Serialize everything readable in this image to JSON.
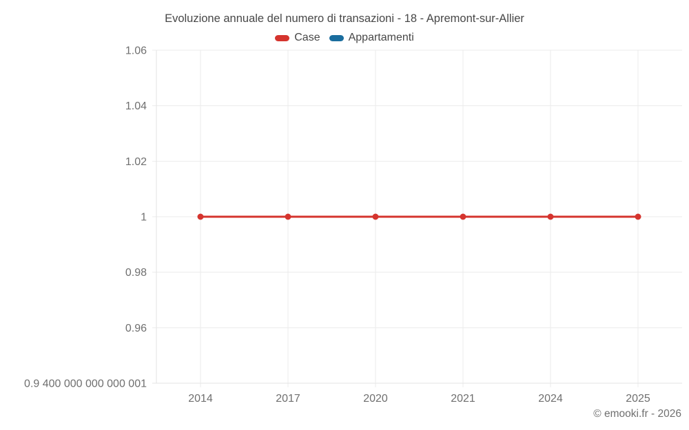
{
  "title": "Evoluzione annuale del numero di transazioni - 18 - Apremont-sur-Allier",
  "legend": [
    {
      "label": "Case",
      "color": "#d5342e"
    },
    {
      "label": "Appartamenti",
      "color": "#1a6d9e"
    }
  ],
  "copyright": "© emooki.fr - 2026",
  "colors": {
    "grid": "#ebebeb",
    "axis": "#e3e3e3",
    "tick_text": "#6f6f6f",
    "title_text": "#474747",
    "background": "#ffffff"
  },
  "chart_data": {
    "type": "line",
    "title": "Evoluzione annuale del numero di transazioni - 18 - Apremont-sur-Allier",
    "categories": [
      "2014",
      "2017",
      "2020",
      "2021",
      "2024",
      "2025"
    ],
    "series": [
      {
        "name": "Case",
        "color": "#d5342e",
        "values": [
          1,
          1,
          1,
          1,
          1,
          1
        ]
      },
      {
        "name": "Appartamenti",
        "color": "#1a6d9e",
        "values": []
      }
    ],
    "xlabel": "",
    "ylabel": "",
    "ylim": [
      0.9400000000000001,
      1.06
    ],
    "y_ticks": [
      1.06,
      1.04,
      1.02,
      1,
      0.98,
      0.96,
      0.9400000000000001
    ],
    "y_tick_labels": [
      "1.06",
      "1.04",
      "1.02",
      "1",
      "0.98",
      "0.96",
      "0.9 400 000 000 000 001"
    ],
    "grid": true,
    "legend_position": "top",
    "marker": "circle"
  }
}
